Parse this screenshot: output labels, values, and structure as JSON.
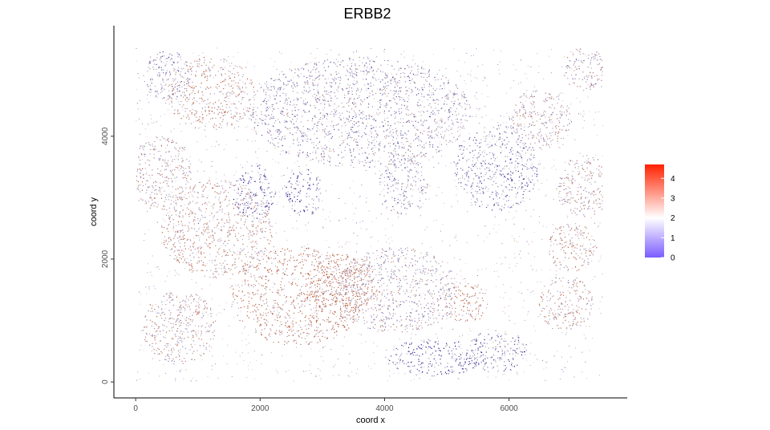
{
  "chart_data": {
    "type": "scatter",
    "title": "ERBB2",
    "xlabel": "coord x",
    "ylabel": "coord y",
    "xlim": [
      -350,
      7900
    ],
    "ylim": [
      -260,
      5800
    ],
    "x_ticks": [
      0,
      2000,
      4000,
      6000
    ],
    "y_ticks": [
      0,
      2000,
      4000
    ],
    "x_tick_labels": [
      "0",
      "2000",
      "4000",
      "6000"
    ],
    "y_tick_labels": [
      "0",
      "2000",
      "4000"
    ],
    "grid": false,
    "legend": {
      "type": "colorbar",
      "placement": "right",
      "range": [
        0,
        4.7
      ],
      "ticks": [
        0,
        1,
        2,
        3,
        4
      ],
      "tick_labels": [
        "0",
        "1",
        "2",
        "3",
        "4"
      ],
      "low_color": "#7B5CFF",
      "mid_color": "#FFFFFF",
      "high_color": "#FF2200",
      "midpoint": 2
    },
    "point_color_low_expression": "#1a0c8a",
    "point_color_high_expression": "#c2410c",
    "tissue_regions": [
      {
        "cx": 1200,
        "cy": 4700,
        "rx": 700,
        "ry": 600,
        "level": 2.9
      },
      {
        "cx": 400,
        "cy": 3400,
        "rx": 500,
        "ry": 600,
        "level": 2.6
      },
      {
        "cx": 1300,
        "cy": 2500,
        "rx": 900,
        "ry": 800,
        "level": 2.8
      },
      {
        "cx": 2600,
        "cy": 1400,
        "rx": 1100,
        "ry": 800,
        "level": 3.2
      },
      {
        "cx": 3300,
        "cy": 1600,
        "rx": 600,
        "ry": 500,
        "level": 3.4
      },
      {
        "cx": 700,
        "cy": 900,
        "rx": 600,
        "ry": 600,
        "level": 2.5
      },
      {
        "cx": 1900,
        "cy": 3100,
        "rx": 350,
        "ry": 450,
        "level": 0.9
      },
      {
        "cx": 2700,
        "cy": 3100,
        "rx": 300,
        "ry": 400,
        "level": 0.9
      },
      {
        "cx": 4300,
        "cy": 3200,
        "rx": 400,
        "ry": 500,
        "level": 1.7
      },
      {
        "cx": 5800,
        "cy": 3500,
        "rx": 700,
        "ry": 700,
        "level": 1.4
      },
      {
        "cx": 6500,
        "cy": 4300,
        "rx": 500,
        "ry": 500,
        "level": 2.4
      },
      {
        "cx": 7200,
        "cy": 3200,
        "rx": 450,
        "ry": 500,
        "level": 2.6
      },
      {
        "cx": 7000,
        "cy": 2200,
        "rx": 400,
        "ry": 400,
        "level": 2.9
      },
      {
        "cx": 5300,
        "cy": 1300,
        "rx": 350,
        "ry": 350,
        "level": 3.3
      },
      {
        "cx": 6900,
        "cy": 1300,
        "rx": 450,
        "ry": 450,
        "level": 2.6
      },
      {
        "cx": 4800,
        "cy": 400,
        "rx": 800,
        "ry": 300,
        "level": 1.0
      },
      {
        "cx": 5800,
        "cy": 500,
        "rx": 500,
        "ry": 350,
        "level": 1.3
      },
      {
        "cx": 7200,
        "cy": 5100,
        "rx": 350,
        "ry": 350,
        "level": 2.1
      },
      {
        "cx": 500,
        "cy": 5000,
        "rx": 400,
        "ry": 400,
        "level": 1.6
      },
      {
        "cx": 3600,
        "cy": 4400,
        "rx": 1800,
        "ry": 900,
        "level": 1.8
      },
      {
        "cx": 4200,
        "cy": 1500,
        "rx": 1000,
        "ry": 700,
        "level": 2.1
      }
    ]
  }
}
